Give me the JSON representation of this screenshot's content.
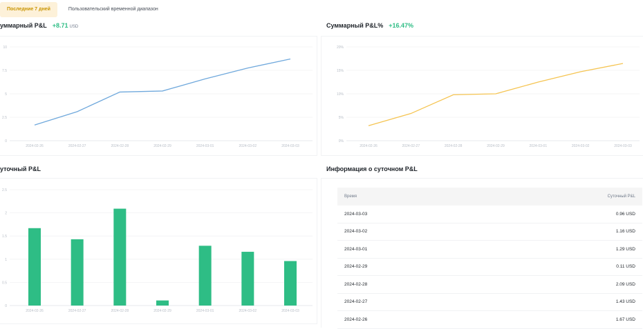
{
  "tabs": [
    {
      "label": "Последние 7 дней",
      "active": true
    },
    {
      "label": "Пользовательский временной диапазон",
      "active": false
    }
  ],
  "cum_pnl": {
    "title": "уммарный P&L",
    "value": "+8.71",
    "unit": "USD"
  },
  "cum_pnl_pct": {
    "title": "Суммарный P&L%",
    "value": "+16.47%"
  },
  "daily_pnl": {
    "title": "уточный P&L"
  },
  "daily_info": {
    "title": "Информация о суточном P&L",
    "col_time": "Время",
    "col_pnl": "Суточный P&L",
    "rows": [
      {
        "date": "2024-03-03",
        "pnl": "0.96 USD"
      },
      {
        "date": "2024-03-02",
        "pnl": "1.16 USD"
      },
      {
        "date": "2024-03-01",
        "pnl": "1.29 USD"
      },
      {
        "date": "2024-02-29",
        "pnl": "0.11 USD"
      },
      {
        "date": "2024-02-28",
        "pnl": "2.09 USD"
      },
      {
        "date": "2024-02-27",
        "pnl": "1.43 USD"
      },
      {
        "date": "2024-02-26",
        "pnl": "1.67 USD"
      }
    ]
  },
  "colors": {
    "accent": "#f0b90b",
    "up": "#2ebd85",
    "line_blue": "#6fa8dc",
    "line_orange": "#f5c451",
    "bar": "#2ebd85"
  },
  "chart_data": [
    {
      "type": "line",
      "title": "Суммарный P&L",
      "x": [
        "2024-02-26",
        "2024-02-27",
        "2024-02-28",
        "2024-02-29",
        "2024-03-01",
        "2024-03-02",
        "2024-03-03"
      ],
      "y_ticks": [
        "0",
        "2.5",
        "5",
        "7.5",
        "10"
      ],
      "ylim": [
        0,
        10
      ],
      "series": [
        {
          "values": [
            1.67,
            3.1,
            5.19,
            5.3,
            6.59,
            7.75,
            8.71
          ]
        }
      ]
    },
    {
      "type": "line",
      "title": "Суммарный P&L%",
      "x": [
        "2024-02-26",
        "2024-02-27",
        "2024-02-28",
        "2024-02-29",
        "2024-03-01",
        "2024-03-02",
        "2024-03-03"
      ],
      "y_ticks": [
        "0%",
        "5%",
        "10%",
        "15%",
        "20%"
      ],
      "ylim": [
        0,
        20
      ],
      "series": [
        {
          "values": [
            3.2,
            5.8,
            9.8,
            10.0,
            12.5,
            14.7,
            16.47
          ]
        }
      ]
    },
    {
      "type": "bar",
      "title": "Суточный P&L",
      "categories": [
        "2024-02-26",
        "2024-02-27",
        "2024-02-28",
        "2024-02-29",
        "2024-03-01",
        "2024-03-02",
        "2024-03-03"
      ],
      "y_ticks": [
        "0",
        "0.5",
        "1",
        "1.5",
        "2",
        "2.5"
      ],
      "ylim": [
        0,
        2.5
      ],
      "values": [
        1.67,
        1.43,
        2.09,
        0.11,
        1.29,
        1.16,
        0.96
      ]
    }
  ]
}
